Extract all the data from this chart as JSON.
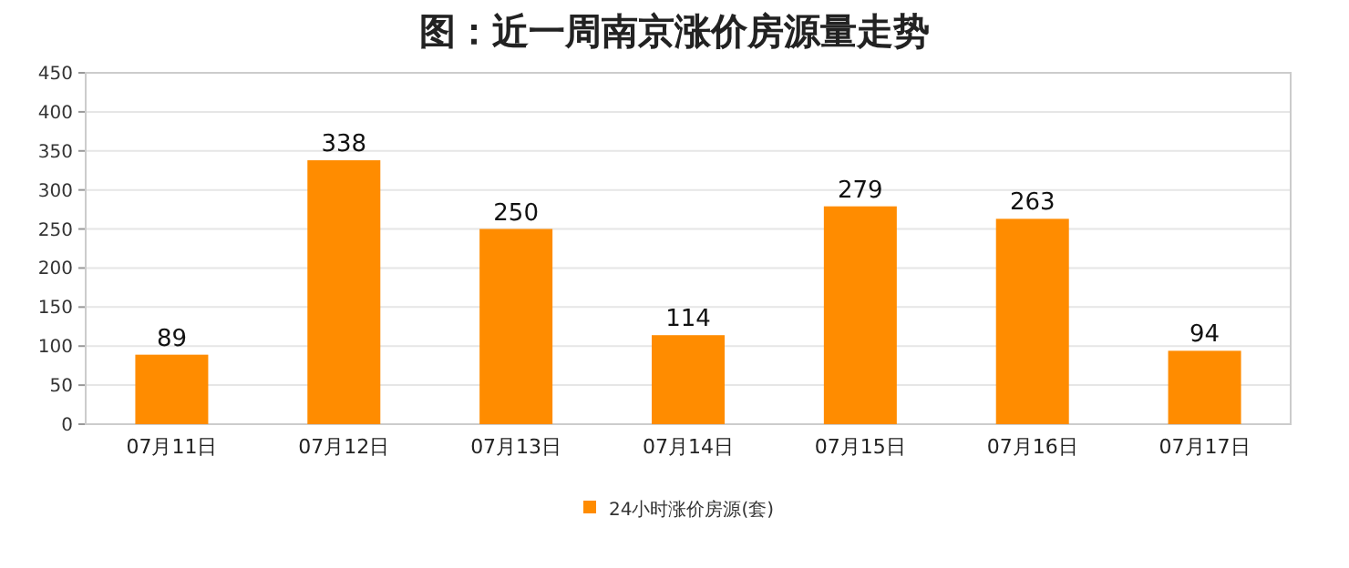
{
  "chart_data": {
    "type": "bar",
    "title": "图：近一周南京涨价房源量走势",
    "categories": [
      "07月11日",
      "07月12日",
      "07月13日",
      "07月14日",
      "07月15日",
      "07月16日",
      "07月17日"
    ],
    "series": [
      {
        "name": "24小时涨价房源(套)",
        "color": "#ff8c00",
        "values": [
          89,
          338,
          250,
          114,
          279,
          263,
          94
        ]
      }
    ],
    "ylim": [
      0,
      450
    ],
    "yticks": [
      0,
      50,
      100,
      150,
      200,
      250,
      300,
      350,
      400,
      450
    ],
    "grid": "y",
    "legend": "bottom",
    "data_labels": true
  }
}
